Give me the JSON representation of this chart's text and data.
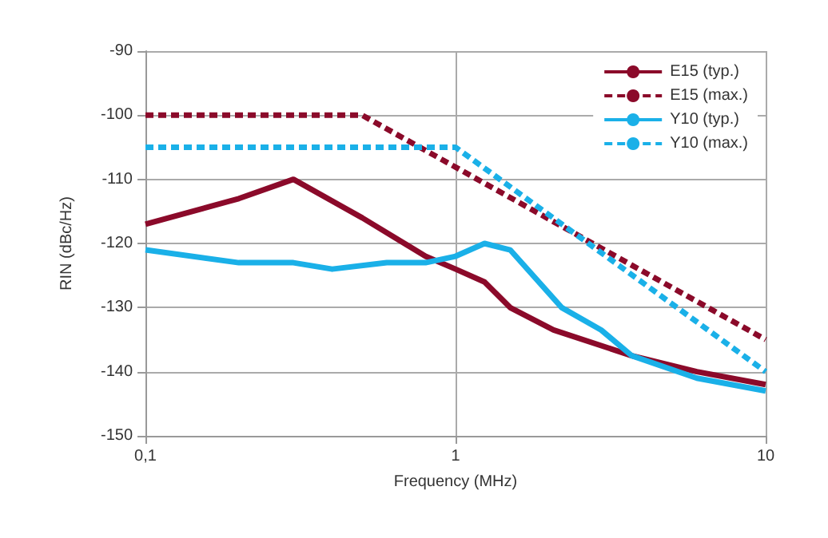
{
  "chart_data": {
    "type": "line",
    "xlabel": "Frequency (MHz)",
    "ylabel": "RIN (dBc/Hz)",
    "log": "x",
    "xlim": [
      0.1,
      10
    ],
    "xticks": [
      {
        "value": 0.1,
        "label": "0,1"
      },
      1,
      10
    ],
    "ylim": [
      -150,
      -90
    ],
    "yticks": [
      -150,
      -140,
      -130,
      -120,
      -110,
      -100,
      -90
    ],
    "grid": true,
    "legend": "top right",
    "marker": "none",
    "series": [
      {
        "name": "E15 (typ.)",
        "color": "#8b0a2a",
        "line_style": "solid",
        "x": [
          0.1,
          0.2,
          0.3,
          0.5,
          0.8,
          1,
          1.24,
          1.5,
          2.07,
          3.7,
          6,
          10
        ],
        "values": [
          -117,
          -113,
          -110,
          -116,
          -122,
          -124,
          -126,
          -130,
          -133.5,
          -137.5,
          -140,
          -142
        ]
      },
      {
        "name": "E15 (max.)",
        "color": "#8b0a2a",
        "line_style": "dashed",
        "x": [
          0.1,
          0.5,
          10
        ],
        "values": [
          -100,
          -100,
          -135
        ]
      },
      {
        "name": "Y10 (typ.)",
        "color": "#1ab0e8",
        "line_style": "solid",
        "x": [
          0.1,
          0.2,
          0.3,
          0.4,
          0.6,
          0.8,
          1,
          1.24,
          1.5,
          2.2,
          2.95,
          3.7,
          6,
          10
        ],
        "values": [
          -121,
          -123,
          -123,
          -124,
          -123,
          -123,
          -122,
          -120,
          -121,
          -130,
          -133.5,
          -137.5,
          -141,
          -143
        ]
      },
      {
        "name": "Y10 (max.)",
        "color": "#1ab0e8",
        "line_style": "dashed",
        "x": [
          0.1,
          1,
          10
        ],
        "values": [
          -105,
          -105,
          -140
        ]
      }
    ]
  }
}
